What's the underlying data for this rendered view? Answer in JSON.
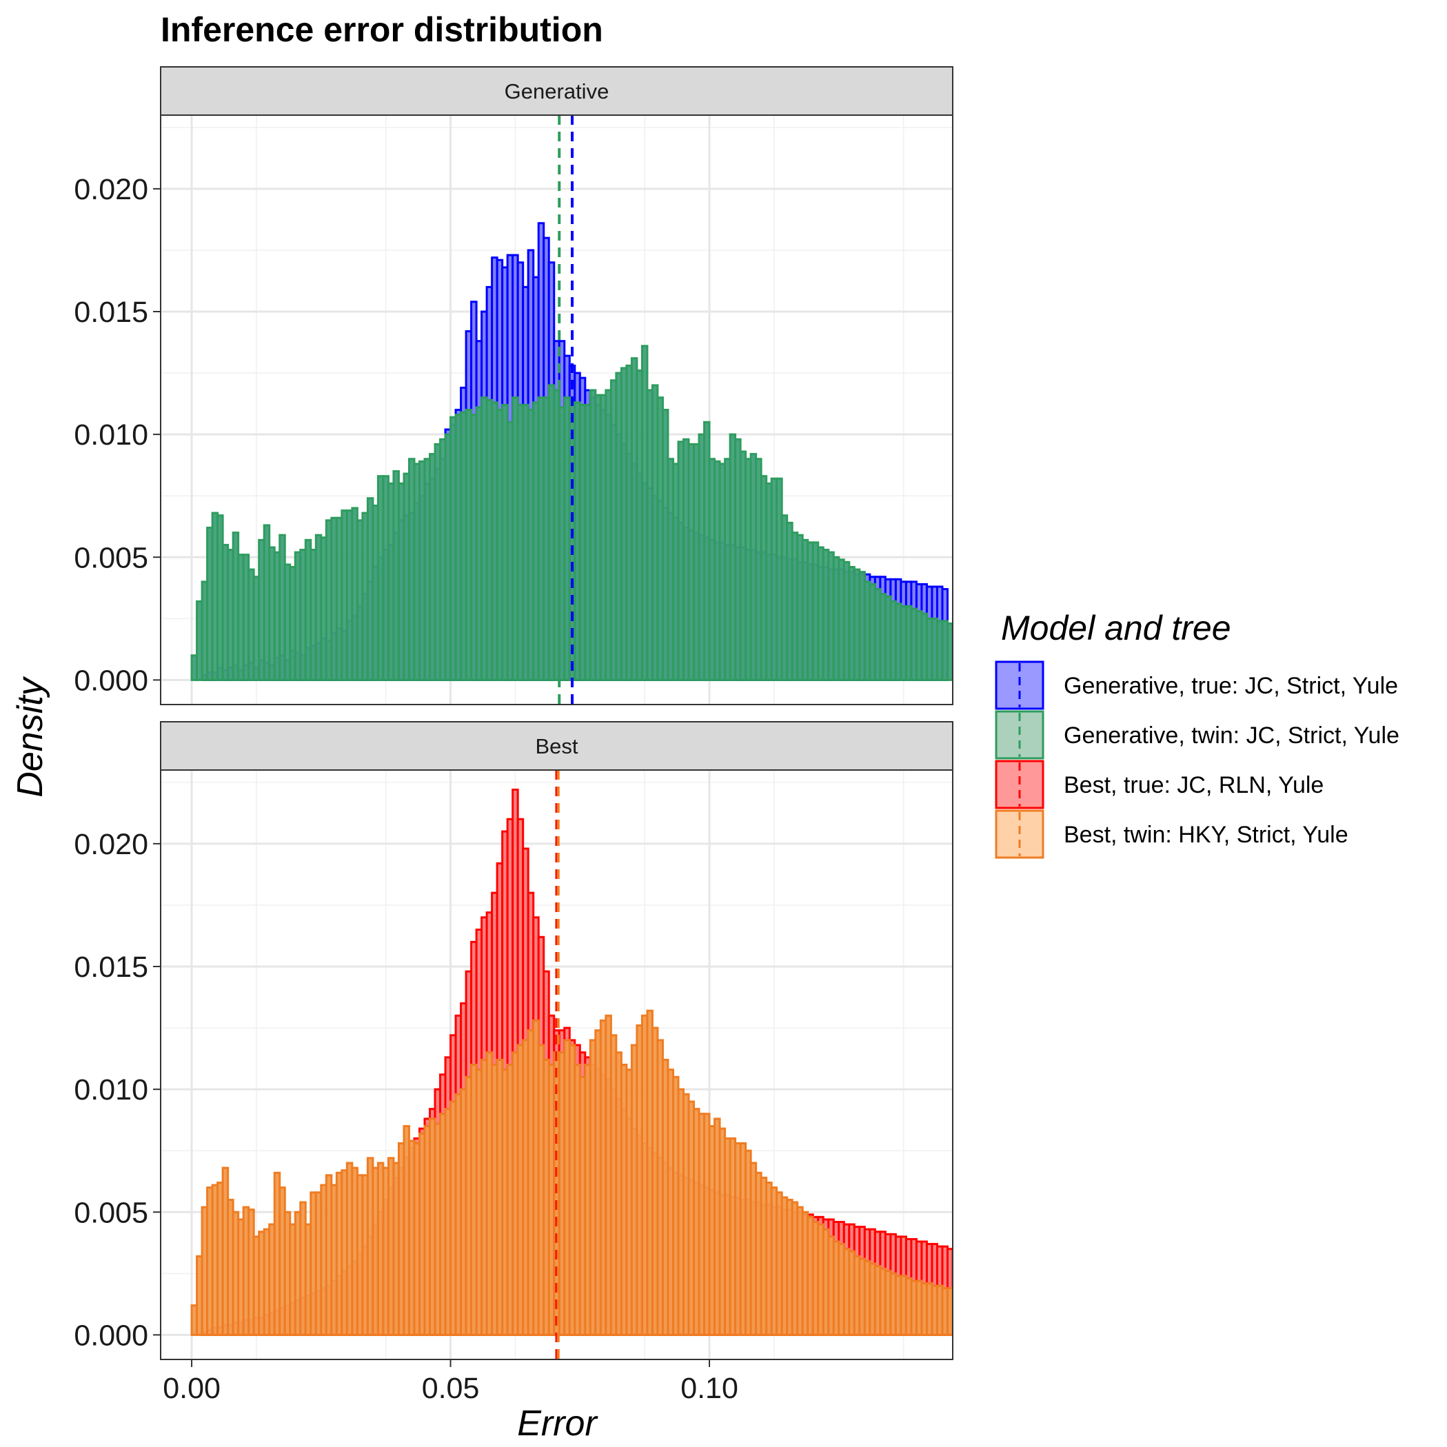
{
  "chart_data": {
    "type": "histogram",
    "title": "Inference error distribution",
    "xlabel": "Error",
    "ylabel": "Density",
    "xlim": [
      -0.006,
      0.147
    ],
    "ylim": [
      -0.001,
      0.023
    ],
    "x_ticks": [
      0.0,
      0.05,
      0.1
    ],
    "x_tick_labels": [
      "0.00",
      "0.05",
      "0.10"
    ],
    "y_ticks": [
      0.0,
      0.005,
      0.01,
      0.015,
      0.02
    ],
    "y_tick_labels": [
      "0.000",
      "0.005",
      "0.010",
      "0.015",
      "0.020"
    ],
    "grid": true,
    "bin_width": 0.001,
    "bin_start": 0.0,
    "legend": {
      "title": "Model and tree",
      "position": "right",
      "entries": [
        {
          "label": "Generative, true: JC, Strict, Yule",
          "color": "#0000ff",
          "fill": "rgba(0,0,255,0.4)"
        },
        {
          "label": "Generative, twin: JC, Strict, Yule",
          "color": "#2e9c5e",
          "fill": "rgba(46,139,87,0.4)"
        },
        {
          "label": "Best, true: JC, RLN, Yule",
          "color": "#ff0000",
          "fill": "rgba(255,0,0,0.4)"
        },
        {
          "label": "Best, twin: HKY, Strict, Yule",
          "color": "#ef7c22",
          "fill": "rgba(255,140,40,0.4)"
        }
      ]
    },
    "panels": [
      {
        "strip": "Generative",
        "series": [
          {
            "name": "Generative, true: JC, Strict, Yule",
            "stroke": "#0000ff",
            "fill": "#8080ff",
            "mean": 0.0735,
            "values": [
              0.0,
              0.0,
              0.0002,
              0.0003,
              0.0003,
              0.0005,
              0.0004,
              0.0005,
              0.0006,
              0.0004,
              0.0006,
              0.0007,
              0.0005,
              0.0008,
              0.0007,
              0.0006,
              0.0009,
              0.001,
              0.0008,
              0.0012,
              0.0011,
              0.001,
              0.0013,
              0.0014,
              0.0015,
              0.0017,
              0.0016,
              0.0019,
              0.0021,
              0.002,
              0.0024,
              0.0026,
              0.003,
              0.0035,
              0.004,
              0.0046,
              0.005,
              0.0053,
              0.0055,
              0.006,
              0.0065,
              0.0067,
              0.0068,
              0.0072,
              0.0075,
              0.008,
              0.0082,
              0.0086,
              0.009,
              0.0102,
              0.0104,
              0.011,
              0.0119,
              0.0142,
              0.0154,
              0.0138,
              0.015,
              0.016,
              0.0172,
              0.0171,
              0.0168,
              0.0173,
              0.0173,
              0.017,
              0.016,
              0.0175,
              0.0164,
              0.0186,
              0.018,
              0.017,
              0.0138,
              0.0138,
              0.0132,
              0.0128,
              0.0125,
              0.0123,
              0.0118,
              0.0115,
              0.0112,
              0.011,
              0.0108,
              0.0104,
              0.01,
              0.0096,
              0.0092,
              0.0088,
              0.0084,
              0.008,
              0.0078,
              0.0075,
              0.0073,
              0.007,
              0.0068,
              0.0066,
              0.0064,
              0.0062,
              0.0061,
              0.006,
              0.0059,
              0.0058,
              0.0057,
              0.0056,
              0.0056,
              0.0055,
              0.0055,
              0.0054,
              0.0054,
              0.0053,
              0.0053,
              0.0052,
              0.0052,
              0.0051,
              0.0051,
              0.005,
              0.005,
              0.0049,
              0.0049,
              0.0048,
              0.0048,
              0.0047,
              0.0047,
              0.0046,
              0.0046,
              0.0045,
              0.0045,
              0.0045,
              0.0044,
              0.0044,
              0.0043,
              0.0043,
              0.0043,
              0.0042,
              0.0042,
              0.0042,
              0.0041,
              0.0041,
              0.0041,
              0.004,
              0.004,
              0.004,
              0.0039,
              0.0039,
              0.0038,
              0.0038,
              0.0038,
              0.0037
            ]
          },
          {
            "name": "Generative, twin: JC, Strict, Yule",
            "stroke": "#2e9c5e",
            "fill": "#41a07a",
            "mean": 0.071,
            "values": [
              0.001,
              0.0032,
              0.004,
              0.0062,
              0.0068,
              0.0067,
              0.0055,
              0.0053,
              0.006,
              0.0051,
              0.0051,
              0.0045,
              0.0042,
              0.0057,
              0.0063,
              0.0054,
              0.0052,
              0.0059,
              0.0047,
              0.0046,
              0.0052,
              0.0053,
              0.0057,
              0.0053,
              0.0059,
              0.0058,
              0.0065,
              0.0066,
              0.0066,
              0.0069,
              0.0069,
              0.007,
              0.0065,
              0.0068,
              0.0074,
              0.0071,
              0.0083,
              0.0083,
              0.008,
              0.0085,
              0.008,
              0.0084,
              0.009,
              0.0088,
              0.0089,
              0.009,
              0.0092,
              0.0096,
              0.0098,
              0.01,
              0.0107,
              0.0108,
              0.0109,
              0.011,
              0.0108,
              0.0111,
              0.0115,
              0.0114,
              0.0113,
              0.011,
              0.0112,
              0.0105,
              0.0115,
              0.0112,
              0.0112,
              0.011,
              0.0113,
              0.0115,
              0.0115,
              0.012,
              0.0118,
              0.0111,
              0.0115,
              0.0113,
              0.0113,
              0.0112,
              0.0112,
              0.0118,
              0.0116,
              0.0116,
              0.0118,
              0.0122,
              0.0125,
              0.0127,
              0.0128,
              0.0131,
              0.0126,
              0.0136,
              0.0118,
              0.012,
              0.0115,
              0.011,
              0.009,
              0.0088,
              0.0097,
              0.0098,
              0.0096,
              0.0096,
              0.01,
              0.0105,
              0.009,
              0.0089,
              0.0088,
              0.009,
              0.01,
              0.0098,
              0.0093,
              0.009,
              0.0092,
              0.009,
              0.0083,
              0.008,
              0.0082,
              0.0082,
              0.0067,
              0.0064,
              0.006,
              0.0059,
              0.0057,
              0.0056,
              0.0056,
              0.0054,
              0.0053,
              0.0052,
              0.005,
              0.0049,
              0.0048,
              0.0046,
              0.0045,
              0.0044,
              0.004,
              0.0039,
              0.0037,
              0.0035,
              0.0034,
              0.0032,
              0.0031,
              0.003,
              0.003,
              0.0029,
              0.0028,
              0.0027,
              0.0025,
              0.0025,
              0.0024,
              0.0024,
              0.0023,
              0.0023
            ]
          }
        ]
      },
      {
        "strip": "Best",
        "series": [
          {
            "name": "Best, true: JC, RLN, Yule",
            "stroke": "#ff0000",
            "fill": "#ff8080",
            "mean": 0.0705,
            "values": [
              0.0,
              0.0,
              0.0001,
              0.0002,
              0.0003,
              0.0003,
              0.0004,
              0.0004,
              0.0005,
              0.0005,
              0.0006,
              0.0006,
              0.0007,
              0.0007,
              0.0008,
              0.0009,
              0.001,
              0.0011,
              0.0012,
              0.0013,
              0.0014,
              0.0015,
              0.0016,
              0.0017,
              0.0018,
              0.0019,
              0.002,
              0.0022,
              0.0024,
              0.0026,
              0.0028,
              0.003,
              0.0033,
              0.0036,
              0.004,
              0.0045,
              0.005,
              0.0055,
              0.006,
              0.0064,
              0.0068,
              0.0072,
              0.0076,
              0.008,
              0.0084,
              0.0088,
              0.0092,
              0.01,
              0.0106,
              0.0113,
              0.0122,
              0.013,
              0.0135,
              0.0148,
              0.016,
              0.0165,
              0.017,
              0.0172,
              0.018,
              0.0192,
              0.0205,
              0.021,
              0.0222,
              0.021,
              0.0198,
              0.018,
              0.017,
              0.0162,
              0.0148,
              0.013,
              0.0124,
              0.0124,
              0.0125,
              0.012,
              0.0118,
              0.0115,
              0.0113,
              0.011,
              0.0108,
              0.0106,
              0.0104,
              0.01,
              0.0096,
              0.0092,
              0.0088,
              0.0084,
              0.0081,
              0.0078,
              0.0076,
              0.0074,
              0.0072,
              0.007,
              0.0068,
              0.0066,
              0.0065,
              0.0064,
              0.0063,
              0.0062,
              0.0061,
              0.006,
              0.0059,
              0.0058,
              0.0057,
              0.0057,
              0.0056,
              0.0056,
              0.0055,
              0.0055,
              0.0054,
              0.0054,
              0.0053,
              0.0053,
              0.0052,
              0.0052,
              0.0051,
              0.0051,
              0.005,
              0.005,
              0.0049,
              0.0049,
              0.0048,
              0.0048,
              0.0047,
              0.0047,
              0.0046,
              0.0046,
              0.0045,
              0.0045,
              0.0044,
              0.0044,
              0.0043,
              0.0043,
              0.0042,
              0.0042,
              0.0041,
              0.0041,
              0.004,
              0.004,
              0.0039,
              0.0039,
              0.0038,
              0.0038,
              0.0037,
              0.0037,
              0.0036,
              0.0036,
              0.0035
            ]
          },
          {
            "name": "Best, twin: HKY, Strict, Yule",
            "stroke": "#ef7c22",
            "fill": "#f29a4c",
            "mean": 0.0708,
            "values": [
              0.0012,
              0.0032,
              0.0052,
              0.006,
              0.0061,
              0.0062,
              0.0068,
              0.0055,
              0.005,
              0.0047,
              0.0052,
              0.0051,
              0.004,
              0.0042,
              0.0043,
              0.0045,
              0.0066,
              0.006,
              0.005,
              0.0045,
              0.005,
              0.0054,
              0.0045,
              0.0058,
              0.0058,
              0.0061,
              0.0065,
              0.0061,
              0.0066,
              0.0067,
              0.007,
              0.0068,
              0.0065,
              0.0065,
              0.0072,
              0.0068,
              0.007,
              0.0068,
              0.0072,
              0.007,
              0.0078,
              0.0085,
              0.0079,
              0.0078,
              0.0082,
              0.0085,
              0.0088,
              0.0086,
              0.009,
              0.0092,
              0.0095,
              0.0098,
              0.01,
              0.0105,
              0.011,
              0.0108,
              0.0112,
              0.0115,
              0.011,
              0.0112,
              0.0108,
              0.011,
              0.0115,
              0.0118,
              0.012,
              0.0124,
              0.0128,
              0.0118,
              0.0112,
              0.011,
              0.0115,
              0.0115,
              0.012,
              0.0118,
              0.011,
              0.0105,
              0.011,
              0.012,
              0.0124,
              0.0128,
              0.013,
              0.0122,
              0.0115,
              0.011,
              0.0108,
              0.0118,
              0.0126,
              0.013,
              0.0132,
              0.0125,
              0.012,
              0.0112,
              0.0108,
              0.0105,
              0.01,
              0.0098,
              0.0095,
              0.0092,
              0.009,
              0.009,
              0.0085,
              0.0088,
              0.0084,
              0.008,
              0.008,
              0.0078,
              0.0078,
              0.0075,
              0.007,
              0.0066,
              0.0064,
              0.0062,
              0.006,
              0.0058,
              0.0056,
              0.0055,
              0.0054,
              0.0052,
              0.005,
              0.0048,
              0.0046,
              0.0045,
              0.0043,
              0.004,
              0.0038,
              0.0037,
              0.0035,
              0.0034,
              0.0032,
              0.0031,
              0.003,
              0.0029,
              0.0028,
              0.0027,
              0.0026,
              0.0025,
              0.0024,
              0.0024,
              0.0023,
              0.0022,
              0.0022,
              0.0021,
              0.0021,
              0.002,
              0.002,
              0.0019,
              0.0019,
              0.0018
            ]
          }
        ]
      }
    ]
  }
}
